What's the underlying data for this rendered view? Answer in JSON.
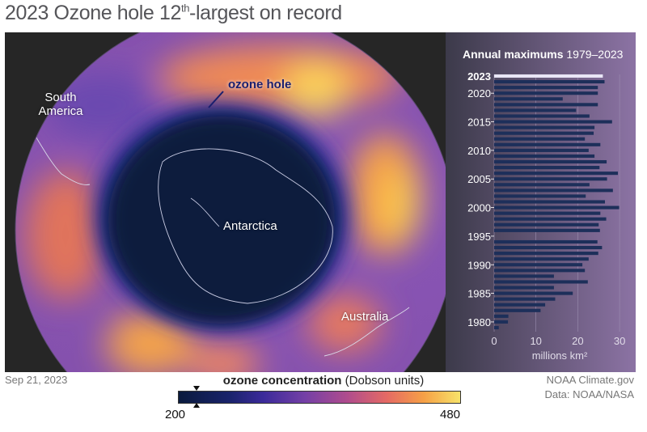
{
  "title": {
    "main": "2023 Ozone hole 12",
    "sup": "th",
    "rest": "-largest on record"
  },
  "map_labels": {
    "south_america": "South America",
    "ozone_hole": "ozone hole",
    "antarctica": "Antarctica",
    "australia": "Australia"
  },
  "date": "Sep 21, 2023",
  "credit": {
    "line1": "NOAA Climate.gov",
    "line2": "Data: NOAA/NASA"
  },
  "legend": {
    "title_bold": "ozone concentration",
    "title_rest": " (Dobson units)",
    "min": "200",
    "max": "480"
  },
  "colors": {
    "bar": "#1d2f5a",
    "highlight_bar": "#e9e6f6",
    "panel": "#262626",
    "hole": "#0c1e3c"
  },
  "chart_data": {
    "type": "bar",
    "orientation": "horizontal",
    "title": "Annual maximums",
    "subtitle": "1979–2023",
    "xlabel": "millions km²",
    "xlim": [
      0,
      30
    ],
    "xticks": [
      0,
      10,
      20,
      30
    ],
    "ytick_labels": [
      "1980",
      "1985",
      "1990",
      "1995",
      "2000",
      "2005",
      "2010",
      "2015",
      "2020"
    ],
    "highlight": {
      "year": "2023",
      "label": "2023"
    },
    "categories": [
      "1979",
      "1980",
      "1981",
      "1982",
      "1983",
      "1984",
      "1985",
      "1986",
      "1987",
      "1988",
      "1989",
      "1990",
      "1991",
      "1992",
      "1993",
      "1994",
      "1996",
      "1997",
      "1998",
      "1999",
      "2000",
      "2001",
      "2002",
      "2003",
      "2004",
      "2005",
      "2006",
      "2007",
      "2008",
      "2009",
      "2010",
      "2011",
      "2012",
      "2013",
      "2014",
      "2015",
      "2016",
      "2017",
      "2018",
      "2019",
      "2020",
      "2021",
      "2022",
      "2023"
    ],
    "values": [
      1.1,
      3.3,
      3.4,
      11.1,
      12.2,
      14.6,
      18.8,
      14.3,
      22.4,
      14.3,
      21.7,
      21.1,
      22.6,
      24.9,
      25.8,
      24.7,
      25.3,
      25.0,
      26.8,
      25.4,
      29.9,
      26.5,
      21.9,
      28.4,
      22.8,
      27.0,
      29.6,
      25.2,
      26.9,
      24.0,
      22.6,
      25.4,
      21.7,
      23.8,
      24.0,
      28.2,
      22.8,
      19.6,
      24.8,
      16.4,
      24.8,
      24.8,
      26.4,
      26.0
    ]
  }
}
